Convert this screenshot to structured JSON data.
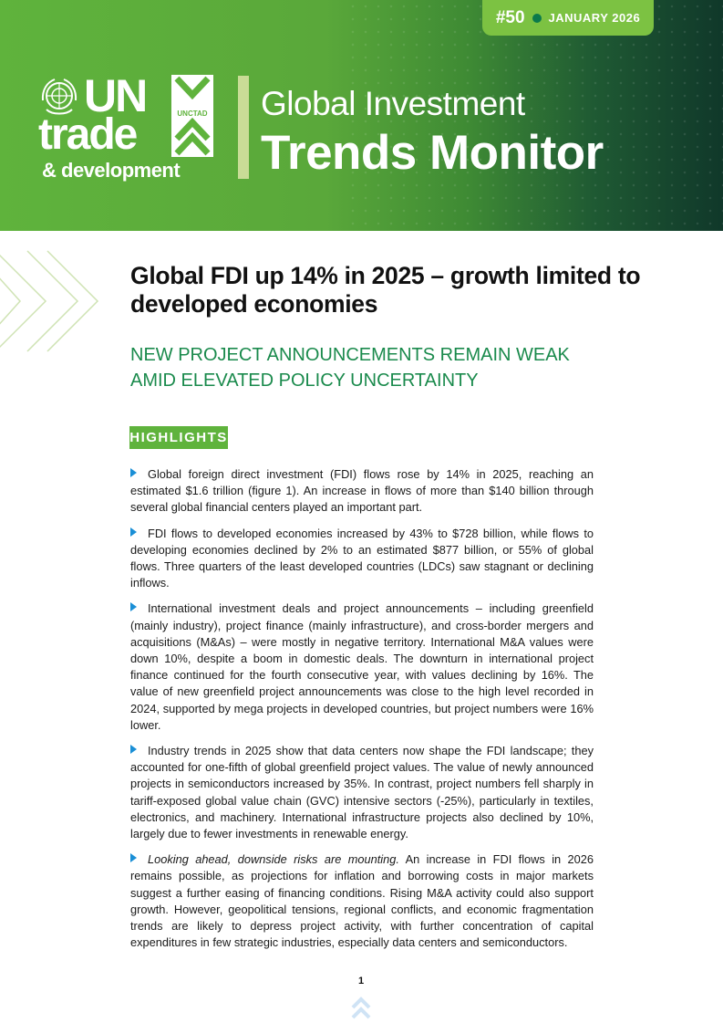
{
  "header": {
    "issue_number": "#50",
    "issue_date": "JANUARY 2026",
    "logo": {
      "un": "UN",
      "trade": "trade",
      "development": "& development",
      "unctad": "UNCTAD"
    },
    "title_line1": "Global Investment",
    "title_line2": "Trends Monitor",
    "colors": {
      "green": "#5fb33c",
      "light_green": "#7cc242",
      "dark_green": "#0b7a4b",
      "bar": "#c9dc96"
    }
  },
  "main": {
    "headline": "Global FDI up 14% in 2025 – growth limited to developed economies",
    "subheadline_line1": "NEW PROJECT ANNOUNCEMENTS REMAIN WEAK",
    "subheadline_line2": "AMID ELEVATED POLICY UNCERTAINTY",
    "highlights_label": "HIGHLIGHTS",
    "bullets": [
      {
        "text": "Global foreign direct investment (FDI) flows rose by 14% in 2025, reaching an estimated $1.6 trillion (figure 1). An increase in flows of more than $140 billion through several global financial centers played an important part."
      },
      {
        "text": "FDI flows to developed economies increased by 43% to $728 billion, while flows to developing economies declined by 2% to an estimated $877 billion, or 55% of global flows. Three quarters of the least developed countries (LDCs) saw stagnant or declining inflows."
      },
      {
        "text": "International investment deals and project announcements – including greenfield (mainly industry), project finance (mainly infrastructure), and cross-border mergers and acquisitions (M&As) – were mostly in negative territory. International M&A values were down 10%, despite a boom in domestic deals. The downturn in international project finance continued for the fourth consecutive year, with values declining by 16%. The value of new greenfield project announcements was close to the high level recorded in 2024, supported by mega projects in developed countries, but project numbers were 16% lower."
      },
      {
        "text": "Industry trends in 2025 show that data centers now shape the FDI landscape; they accounted for one-fifth of global greenfield project values. The value of newly announced projects in semiconductors increased by 35%. In contrast, project numbers fell sharply in tariff-exposed global value chain (GVC) intensive sectors (-25%), particularly in textiles, electronics, and machinery. International infrastructure projects also declined by 10%, largely due to fewer investments in renewable energy."
      },
      {
        "lead": "Looking ahead, downside risks are mounting.",
        "text": " An increase in FDI flows in 2026 remains possible, as projections for inflation and borrowing costs in major markets suggest a further easing of financing conditions. Rising M&A activity could also support growth. However, geopolitical tensions, regional conflicts, and economic fragmentation trends are likely to depress project activity, with further concentration of capital expenditures in few strategic industries, especially data centers and semiconductors."
      }
    ]
  },
  "footer": {
    "page_number": "1"
  }
}
